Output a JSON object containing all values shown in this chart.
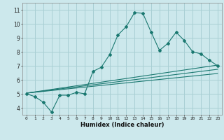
{
  "xlabel": "Humidex (Indice chaleur)",
  "ylabel": "",
  "bg_color": "#cce8ec",
  "line_color": "#1a7870",
  "grid_color": "#a8cfd4",
  "xlim": [
    -0.5,
    23.5
  ],
  "ylim": [
    3.5,
    11.5
  ],
  "xticks": [
    0,
    1,
    2,
    3,
    4,
    5,
    6,
    7,
    8,
    9,
    10,
    11,
    12,
    13,
    14,
    15,
    16,
    17,
    18,
    19,
    20,
    21,
    22,
    23
  ],
  "yticks": [
    4,
    5,
    6,
    7,
    8,
    9,
    10,
    11
  ],
  "curve_x": [
    0,
    1,
    2,
    3,
    4,
    5,
    6,
    7,
    8,
    9,
    10,
    11,
    12,
    13,
    14,
    15,
    16,
    17,
    18,
    19,
    20,
    21,
    22,
    23
  ],
  "curve_y": [
    5.0,
    4.8,
    4.4,
    3.7,
    4.9,
    4.9,
    5.1,
    5.0,
    6.6,
    6.9,
    7.8,
    9.2,
    9.8,
    10.8,
    10.75,
    9.4,
    8.1,
    8.6,
    9.4,
    8.8,
    8.0,
    7.85,
    7.4,
    7.0
  ],
  "line1_x": [
    0,
    23
  ],
  "line1_y": [
    5.05,
    7.05
  ],
  "line2_x": [
    0,
    23
  ],
  "line2_y": [
    5.05,
    6.75
  ],
  "line3_x": [
    0,
    23
  ],
  "line3_y": [
    5.05,
    6.45
  ]
}
